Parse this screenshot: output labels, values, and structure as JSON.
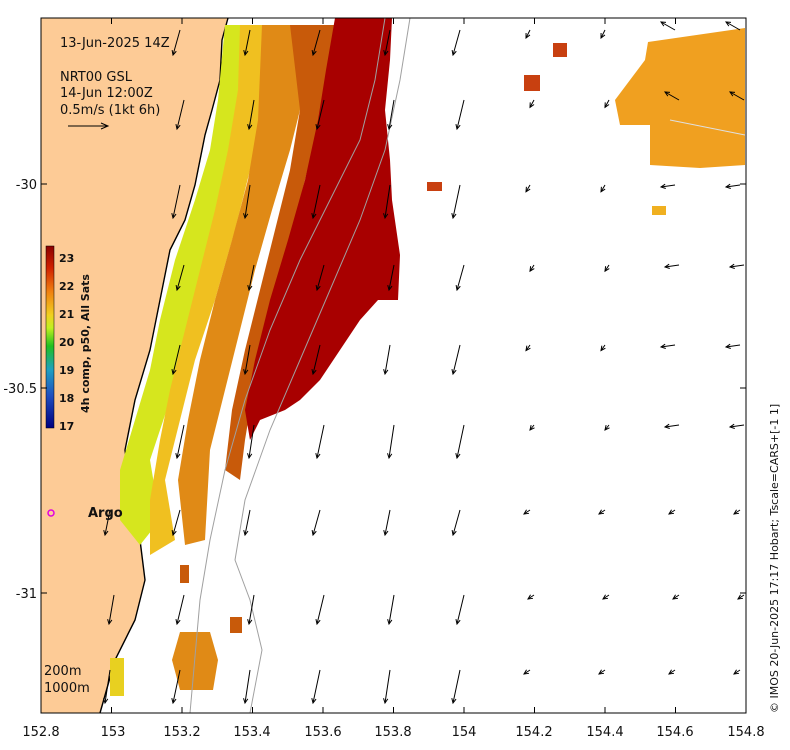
{
  "map": {
    "date_label": "13-Jun-2025 14Z",
    "product_label": "NRT00 GSL",
    "vector_time_label": "14-Jun 12:00Z",
    "scale_label": "0.5m/s (1kt 6h)",
    "isobath_labels": [
      "200m",
      "1000m"
    ],
    "argo_label": "Argo",
    "credit_text": "© IMOS 20-Jun-2025 17:17 Hobart; Tscale=CARS+[-1 1]",
    "colorbar": {
      "title": "4h comp, p50, All Sats",
      "ticks": [
        "23",
        "22",
        "21",
        "20",
        "19",
        "18",
        "17"
      ]
    },
    "x_ticks": [
      "152.8",
      "153",
      "153.2",
      "153.4",
      "153.6",
      "153.8",
      "154",
      "154.2",
      "154.4",
      "154.6",
      "154.8"
    ],
    "y_ticks": [
      "-30",
      "-30.5",
      "-31"
    ],
    "colors": {
      "land": "#fdcb96",
      "argo_marker": "#e000e0",
      "sst_warm": "#a30000",
      "sst_mid": "#e07a10",
      "sst_cool": "#d8e820"
    }
  }
}
